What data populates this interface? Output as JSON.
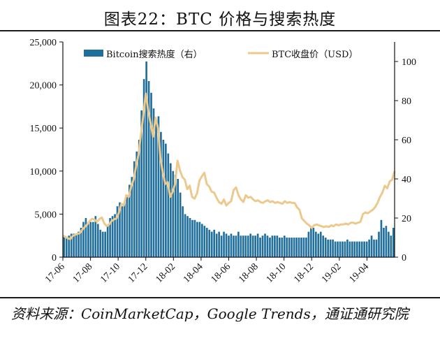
{
  "title": "图表22：BTC 价格与搜索热度",
  "source": "资料来源：CoinMarketCap，Google Trends，通证通研究院",
  "chart_data": {
    "type": "bar+line",
    "left_axis": {
      "ylim": [
        0,
        25000
      ],
      "ticks": [
        "0",
        "5,000",
        "10,000",
        "15,000",
        "20,000",
        "25,000"
      ],
      "tick_values": [
        0,
        5000,
        10000,
        15000,
        20000,
        25000
      ]
    },
    "right_axis": {
      "ylim": [
        0,
        110
      ],
      "ticks": [
        "0",
        "20",
        "40",
        "60",
        "80",
        "100"
      ],
      "tick_values": [
        0,
        20,
        40,
        60,
        80,
        100
      ]
    },
    "x_ticks": [
      "17-06",
      "17-08",
      "17-10",
      "17-12",
      "18-02",
      "18-04",
      "18-06",
      "18-08",
      "18-10",
      "18-12",
      "19-02",
      "19-04"
    ],
    "colors": {
      "bar": "#1f6e9c",
      "line": "#ecc98d"
    },
    "legend": {
      "position": "top",
      "bar_label": "Bitcoin搜索热度（右）",
      "line_label": "BTC收盘价（USD）"
    },
    "series": [
      {
        "name": "Bitcoin搜索热度（右）",
        "axis": "right",
        "kind": "bar",
        "values": [
          11,
          10,
          11,
          12,
          12,
          12,
          13,
          15,
          18,
          20,
          17,
          18,
          18,
          21,
          17,
          14,
          13,
          13,
          16,
          20,
          21,
          22,
          26,
          28,
          26,
          28,
          31,
          37,
          41,
          49,
          54,
          60,
          75,
          91,
          100,
          90,
          84,
          76,
          70,
          72,
          64,
          60,
          58,
          53,
          48,
          44,
          42,
          40,
          33,
          26,
          22,
          21,
          20,
          19,
          19,
          18,
          18,
          17,
          16,
          15,
          14,
          13,
          14,
          12,
          13,
          11,
          13,
          12,
          11,
          12,
          11,
          11,
          13,
          11,
          11,
          11,
          11,
          12,
          11,
          11,
          12,
          10,
          11,
          12,
          11,
          10,
          11,
          11,
          11,
          10,
          10,
          11,
          10,
          10,
          10,
          10,
          10,
          10,
          10,
          10,
          10,
          13,
          15,
          15,
          13,
          12,
          13,
          11,
          10,
          9,
          9,
          9,
          8,
          8,
          8,
          8,
          8,
          9,
          8,
          8,
          8,
          8,
          8,
          8,
          8,
          8,
          9,
          11,
          9,
          9,
          13,
          19,
          15,
          16,
          13,
          11,
          15
        ]
      },
      {
        "name": "BTC收盘价（USD）",
        "axis": "left",
        "kind": "line",
        "values": [
          2500,
          2350,
          2200,
          2100,
          2450,
          2600,
          2700,
          2800,
          3200,
          3500,
          3800,
          4200,
          4450,
          4350,
          4100,
          4450,
          4600,
          3900,
          3600,
          3800,
          4200,
          4400,
          4500,
          5200,
          6200,
          6000,
          7200,
          7000,
          8200,
          9000,
          10500,
          11900,
          14200,
          16500,
          19000,
          17000,
          15500,
          14000,
          16200,
          15000,
          11500,
          9800,
          8500,
          8700,
          7000,
          7600,
          8500,
          11200,
          10100,
          9300,
          9000,
          7900,
          8300,
          7000,
          6800,
          7400,
          8900,
          9400,
          9800,
          8500,
          8200,
          7600,
          7500,
          6900,
          6400,
          6200,
          6700,
          6000,
          6300,
          6500,
          7800,
          8100,
          7200,
          6700,
          6400,
          7200,
          6900,
          7000,
          6700,
          6500,
          6600,
          6400,
          6300,
          6500,
          6600,
          6400,
          6500,
          6300,
          6400,
          6300,
          6200,
          6500,
          6300,
          6400,
          6300,
          6300,
          5800,
          5500,
          4500,
          4200,
          3900,
          3700,
          3400,
          3700,
          3800,
          3700,
          3600,
          3500,
          3600,
          3500,
          3700,
          3600,
          3800,
          3700,
          3800,
          3800,
          3900,
          3800,
          4000,
          4000,
          3900,
          4000,
          4100,
          5000,
          5200,
          5100,
          5300,
          5500,
          5800,
          6300,
          7000,
          7500,
          8300,
          8000,
          8800,
          9000,
          10000
        ]
      }
    ]
  }
}
